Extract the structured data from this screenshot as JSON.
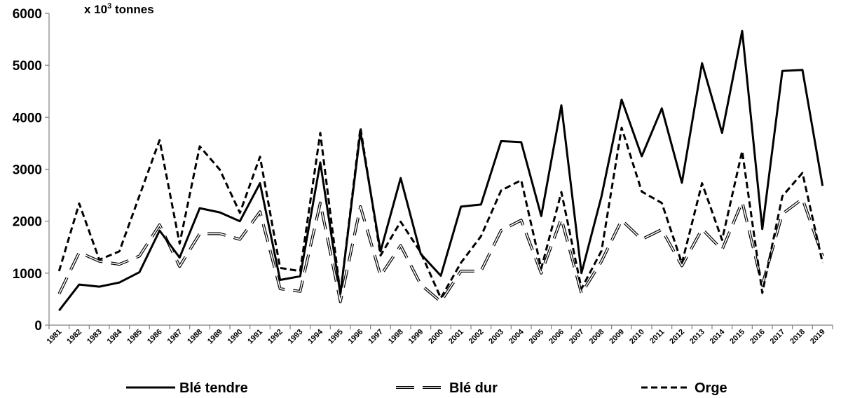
{
  "chart_data": {
    "type": "line",
    "unit_label": {
      "prefix": "x 10",
      "exponent": "3",
      "suffix": " tonnes"
    },
    "ylim": [
      0,
      6000
    ],
    "yticks": [
      "0",
      "1000",
      "2000",
      "3000",
      "4000",
      "5000",
      "6000"
    ],
    "ytick_values": [
      0,
      1000,
      2000,
      3000,
      4000,
      5000,
      6000
    ],
    "grid": false,
    "legend_position": "bottom",
    "x": [
      "1981",
      "1982",
      "1983",
      "1984",
      "1985",
      "1986",
      "1987",
      "1988",
      "1989",
      "1990",
      "1991",
      "1992",
      "1993",
      "1994",
      "1995",
      "1996",
      "1997",
      "1998",
      "1999",
      "2000",
      "2001",
      "2002",
      "2003",
      "2004",
      "2005",
      "2006",
      "2007",
      "2008",
      "2009",
      "2010",
      "2011",
      "2012",
      "2013",
      "2014",
      "2015",
      "2016",
      "2017",
      "2018",
      "2019"
    ],
    "series": [
      {
        "name": "Blé tendre",
        "style": "solid",
        "color": "#000000",
        "values": [
          280,
          780,
          740,
          820,
          1020,
          1820,
          1300,
          2250,
          2170,
          2000,
          2730,
          870,
          940,
          3130,
          600,
          3720,
          1420,
          2830,
          1370,
          950,
          2280,
          2320,
          3540,
          3520,
          2100,
          4230,
          1000,
          2480,
          4340,
          3250,
          4170,
          2740,
          5040,
          3700,
          5660,
          1850,
          4890,
          4910,
          2680
        ]
      },
      {
        "name": "Blé dur",
        "style": "double-long-dash",
        "color": "#000000",
        "values": [
          600,
          1400,
          1230,
          1170,
          1330,
          1930,
          1130,
          1760,
          1760,
          1650,
          2180,
          700,
          650,
          2350,
          450,
          2280,
          950,
          1530,
          780,
          450,
          1040,
          1040,
          1820,
          2020,
          1000,
          2050,
          610,
          1230,
          2020,
          1650,
          1840,
          1140,
          1850,
          1450,
          2370,
          770,
          2140,
          2430,
          1330
        ]
      },
      {
        "name": "Orge",
        "style": "dashed",
        "color": "#000000",
        "values": [
          1040,
          2340,
          1260,
          1420,
          2490,
          3560,
          1570,
          3440,
          2990,
          2160,
          3240,
          1100,
          1040,
          3700,
          600,
          3800,
          1340,
          1990,
          1400,
          520,
          1200,
          1710,
          2590,
          2790,
          1090,
          2560,
          700,
          1430,
          3800,
          2570,
          2350,
          1190,
          2730,
          1640,
          3350,
          620,
          2480,
          2930,
          1200
        ]
      }
    ]
  }
}
